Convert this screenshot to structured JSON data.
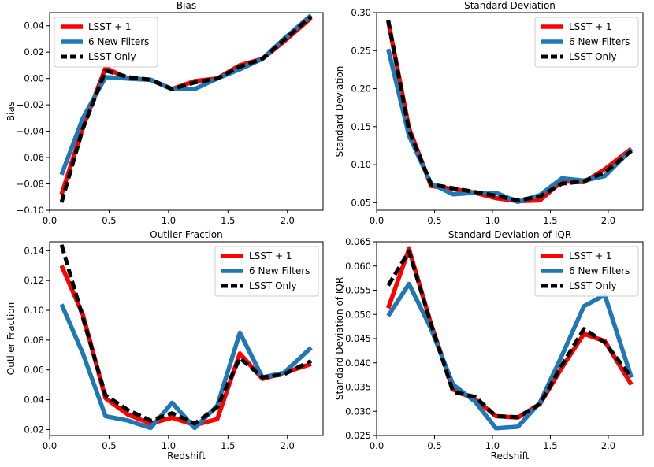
{
  "figure": {
    "series_styles": [
      {
        "name": "LSST + 1",
        "color": "#ff0000",
        "dash": "solid"
      },
      {
        "name": "6 New Filters",
        "color": "#1f77b4",
        "dash": "solid"
      },
      {
        "name": "LSST Only",
        "color": "#000000",
        "dash": "dashed"
      }
    ]
  },
  "chart_data": [
    {
      "type": "line",
      "title": "Bias",
      "xlabel": "",
      "ylabel": "Bias",
      "xlim": [
        0.0,
        2.3
      ],
      "ylim": [
        -0.1,
        0.05
      ],
      "xticks": [
        "0.0",
        "0.5",
        "1.0",
        "1.5",
        "2.0"
      ],
      "xtick_values": [
        0.0,
        0.5,
        1.0,
        1.5,
        2.0
      ],
      "yticks": [
        "−0.10",
        "−0.08",
        "−0.06",
        "−0.04",
        "−0.02",
        "0.00",
        "0.02",
        "0.04"
      ],
      "ytick_values": [
        -0.1,
        -0.08,
        -0.06,
        -0.04,
        -0.02,
        0.0,
        0.02,
        0.04
      ],
      "legend": "top-left",
      "x": [
        0.1,
        0.28,
        0.47,
        0.66,
        0.85,
        1.03,
        1.22,
        1.41,
        1.6,
        1.79,
        1.97,
        2.2
      ],
      "series": [
        {
          "name": "LSST + 1",
          "values": [
            -0.088,
            -0.037,
            0.008,
            0.0,
            -0.001,
            -0.008,
            -0.002,
            0.0,
            0.01,
            0.015,
            0.028,
            0.046
          ]
        },
        {
          "name": "6 New Filters",
          "values": [
            -0.073,
            -0.03,
            0.001,
            0.0,
            -0.001,
            -0.008,
            -0.008,
            0.0,
            0.007,
            0.015,
            0.03,
            0.048
          ]
        },
        {
          "name": "LSST Only",
          "values": [
            -0.094,
            -0.038,
            0.006,
            0.001,
            -0.001,
            -0.008,
            -0.003,
            0.0,
            0.009,
            0.015,
            0.029,
            0.047
          ]
        }
      ]
    },
    {
      "type": "line",
      "title": "Standard Deviation",
      "xlabel": "",
      "ylabel": "Standard Deviation",
      "xlim": [
        0.0,
        2.3
      ],
      "ylim": [
        0.04,
        0.3
      ],
      "xticks": [
        "0.0",
        "0.5",
        "1.0",
        "1.5",
        "2.0"
      ],
      "xtick_values": [
        0.0,
        0.5,
        1.0,
        1.5,
        2.0
      ],
      "yticks": [
        "0.05",
        "0.10",
        "0.15",
        "0.20",
        "0.25",
        "0.30"
      ],
      "ytick_values": [
        0.05,
        0.1,
        0.15,
        0.2,
        0.25,
        0.3
      ],
      "legend": "top-right",
      "x": [
        0.1,
        0.28,
        0.47,
        0.66,
        0.85,
        1.03,
        1.22,
        1.41,
        1.6,
        1.79,
        1.97,
        2.2
      ],
      "series": [
        {
          "name": "LSST + 1",
          "values": [
            0.289,
            0.148,
            0.072,
            0.068,
            0.063,
            0.056,
            0.052,
            0.053,
            0.078,
            0.077,
            0.094,
            0.121
          ]
        },
        {
          "name": "6 New Filters",
          "values": [
            0.252,
            0.138,
            0.075,
            0.061,
            0.063,
            0.063,
            0.051,
            0.06,
            0.082,
            0.079,
            0.085,
            0.12
          ]
        },
        {
          "name": "LSST Only",
          "values": [
            0.29,
            0.145,
            0.074,
            0.069,
            0.064,
            0.059,
            0.053,
            0.058,
            0.075,
            0.078,
            0.09,
            0.118
          ]
        }
      ]
    },
    {
      "type": "line",
      "title": "Outlier Fraction",
      "xlabel": "Redshift",
      "ylabel": "Outlier Fraction",
      "xlim": [
        0.0,
        2.3
      ],
      "ylim": [
        0.016,
        0.146
      ],
      "xticks": [
        "0.0",
        "0.5",
        "1.0",
        "1.5",
        "2.0"
      ],
      "xtick_values": [
        0.0,
        0.5,
        1.0,
        1.5,
        2.0
      ],
      "yticks": [
        "0.02",
        "0.04",
        "0.06",
        "0.08",
        "0.10",
        "0.12",
        "0.14"
      ],
      "ytick_values": [
        0.02,
        0.04,
        0.06,
        0.08,
        0.1,
        0.12,
        0.14
      ],
      "legend": "top-right",
      "x": [
        0.1,
        0.28,
        0.47,
        0.66,
        0.85,
        1.03,
        1.22,
        1.41,
        1.6,
        1.79,
        1.97,
        2.2
      ],
      "series": [
        {
          "name": "LSST + 1",
          "values": [
            0.13,
            0.097,
            0.041,
            0.03,
            0.024,
            0.028,
            0.023,
            0.027,
            0.071,
            0.054,
            0.058,
            0.064
          ]
        },
        {
          "name": "6 New Filters",
          "values": [
            0.104,
            0.071,
            0.029,
            0.026,
            0.021,
            0.038,
            0.021,
            0.036,
            0.085,
            0.055,
            0.058,
            0.075
          ]
        },
        {
          "name": "LSST Only",
          "values": [
            0.144,
            0.095,
            0.043,
            0.033,
            0.026,
            0.031,
            0.024,
            0.035,
            0.068,
            0.055,
            0.057,
            0.066
          ]
        }
      ]
    },
    {
      "type": "line",
      "title": "Standard Deviation of IQR",
      "xlabel": "Redshift",
      "ylabel": "Standard Deviation of IQR",
      "xlim": [
        0.0,
        2.3
      ],
      "ylim": [
        0.025,
        0.065
      ],
      "xticks": [
        "0.0",
        "0.5",
        "1.0",
        "1.5",
        "2.0"
      ],
      "xtick_values": [
        0.0,
        0.5,
        1.0,
        1.5,
        2.0
      ],
      "yticks": [
        "0.025",
        "0.030",
        "0.035",
        "0.040",
        "0.045",
        "0.050",
        "0.055",
        "0.060",
        "0.065"
      ],
      "ytick_values": [
        0.025,
        0.03,
        0.035,
        0.04,
        0.045,
        0.05,
        0.055,
        0.06,
        0.065
      ],
      "legend": "top-right",
      "x": [
        0.1,
        0.28,
        0.47,
        0.66,
        0.85,
        1.03,
        1.22,
        1.41,
        1.6,
        1.79,
        1.97,
        2.2
      ],
      "series": [
        {
          "name": "LSST + 1",
          "values": [
            0.0513,
            0.0635,
            0.048,
            0.0345,
            0.0325,
            0.029,
            0.0287,
            0.0315,
            0.039,
            0.046,
            0.0445,
            0.0355
          ]
        },
        {
          "name": "6 New Filters",
          "values": [
            0.0497,
            0.0563,
            0.047,
            0.0355,
            0.032,
            0.0265,
            0.0268,
            0.0318,
            0.0415,
            0.0517,
            0.054,
            0.037
          ]
        },
        {
          "name": "LSST Only",
          "values": [
            0.056,
            0.063,
            0.048,
            0.034,
            0.033,
            0.029,
            0.0288,
            0.0315,
            0.0395,
            0.047,
            0.0442,
            0.037
          ]
        }
      ]
    }
  ]
}
